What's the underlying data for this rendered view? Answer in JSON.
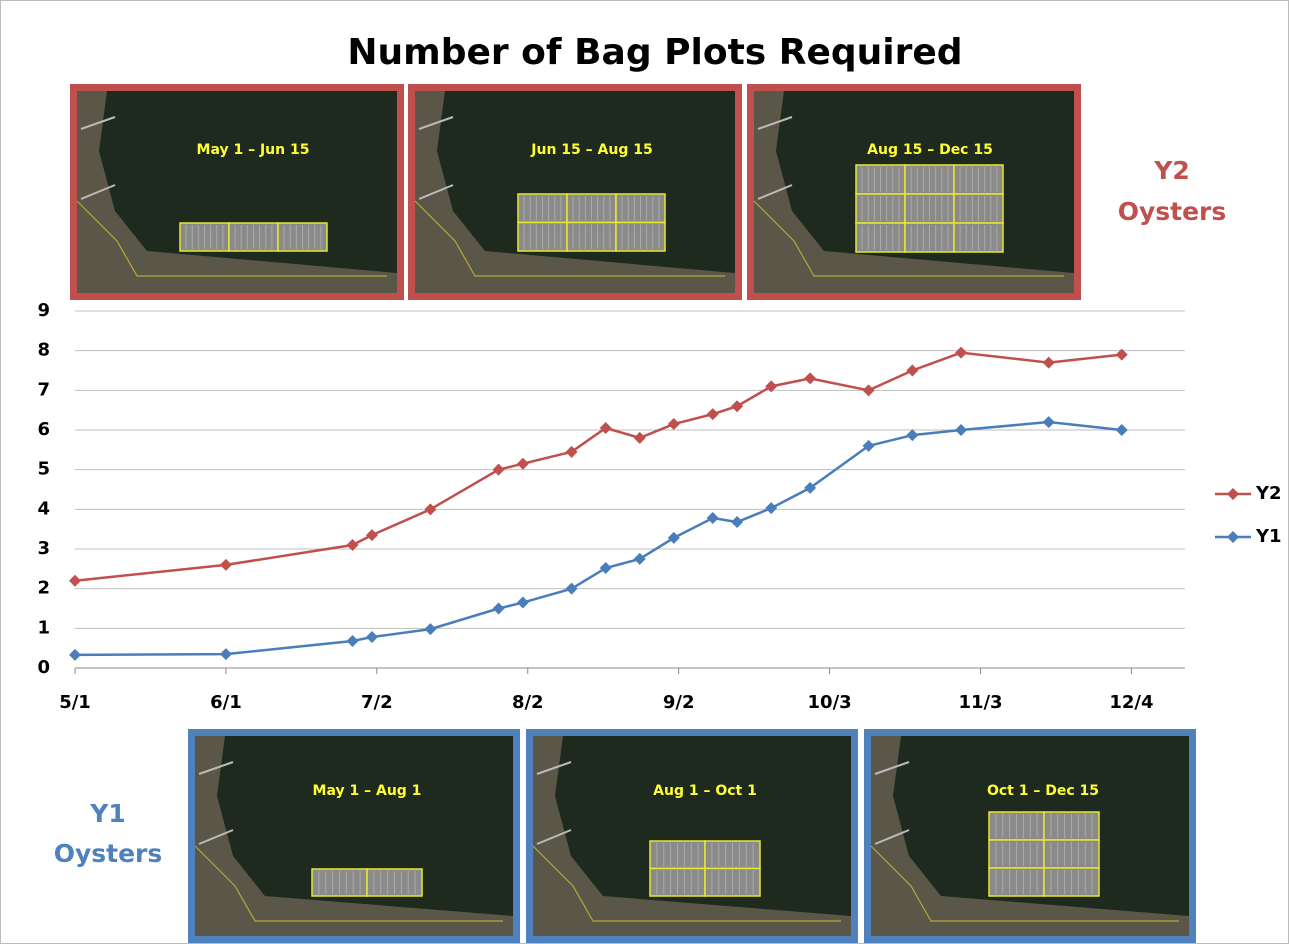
{
  "chart_data": {
    "type": "line",
    "title": "Number of Bag Plots Required",
    "x": [
      0,
      31,
      57,
      61,
      73,
      87,
      92,
      102,
      109,
      116,
      123,
      131,
      136,
      143,
      151,
      163,
      172,
      182,
      200,
      215
    ],
    "series": [
      {
        "name": "Y2",
        "color": "#c0504d",
        "values": [
          2.2,
          2.6,
          3.1,
          3.35,
          4.0,
          5.0,
          5.15,
          5.45,
          6.05,
          5.8,
          6.15,
          6.4,
          6.6,
          7.1,
          7.3,
          7.0,
          7.5,
          7.95,
          7.7,
          7.9
        ]
      },
      {
        "name": "Y1",
        "color": "#4a7ebb",
        "values": [
          0.33,
          0.35,
          0.68,
          0.78,
          0.98,
          1.5,
          1.65,
          2.0,
          2.52,
          2.75,
          3.28,
          3.78,
          3.68,
          4.03,
          4.54,
          5.6,
          5.87,
          6.0,
          6.2,
          6.0
        ]
      }
    ],
    "xlim": [
      0,
      228
    ],
    "xticks": [
      {
        "value": 0,
        "label": "5/1"
      },
      {
        "value": 31,
        "label": "6/1"
      },
      {
        "value": 62,
        "label": "7/2"
      },
      {
        "value": 93,
        "label": "8/2"
      },
      {
        "value": 124,
        "label": "9/2"
      },
      {
        "value": 155,
        "label": "10/3"
      },
      {
        "value": 186,
        "label": "11/3"
      },
      {
        "value": 217,
        "label": "12/4"
      }
    ],
    "ylim": [
      0,
      9
    ],
    "yticks": [
      0,
      1,
      2,
      3,
      4,
      5,
      6,
      7,
      8,
      9
    ],
    "grid": true,
    "legend": "right",
    "annotations": {
      "top_panels": [
        "May 1 – Jun 15",
        "Jun 15 – Aug 15",
        "Aug 15 – Dec 15"
      ],
      "bottom_panels": [
        "May 1 – Aug 1",
        "Aug 1 – Oct 1",
        "Oct 1 – Dec 15"
      ],
      "top_group": [
        "Y2",
        "Oysters"
      ],
      "bottom_group": [
        "Y1",
        "Oysters"
      ]
    }
  }
}
